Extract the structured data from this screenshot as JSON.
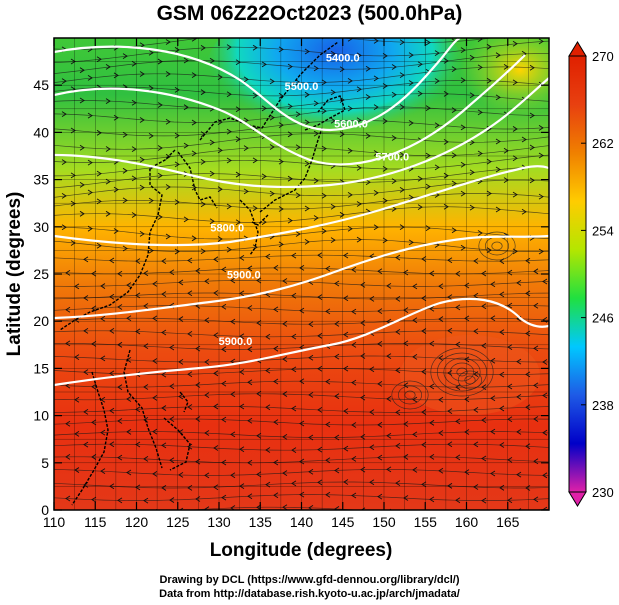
{
  "title": "GSM 06Z22Oct2023 (500.0hPa)",
  "chart_data": {
    "type": "heatmap",
    "title": "GSM 06Z22Oct2023 (500.0hPa)",
    "xlabel": "Longitude (degrees)",
    "ylabel": "Latitude  (degrees)",
    "xlim": [
      110,
      170
    ],
    "ylim": [
      0,
      50
    ],
    "x_ticks": [
      110,
      115,
      120,
      125,
      130,
      135,
      140,
      145,
      150,
      155,
      160,
      165
    ],
    "y_ticks": [
      0,
      5,
      10,
      15,
      20,
      25,
      30,
      35,
      40,
      45
    ],
    "grid": true,
    "colorbar": {
      "min": 230,
      "max": 270,
      "tick_values": [
        230,
        238,
        246,
        254,
        262,
        270
      ],
      "tick_labels": [
        "230",
        "238",
        "246",
        "254",
        "262",
        "270"
      ],
      "colors": [
        "#e020a8",
        "#0000c8",
        "#1e5ae6",
        "#00c8ff",
        "#20e040",
        "#b4e600",
        "#ffcc00",
        "#f08000",
        "#e84010",
        "#e02000"
      ]
    },
    "contour_labels": [
      {
        "text": "5400.0",
        "lon": 145,
        "lat": 47.5
      },
      {
        "text": "5500.0",
        "lon": 140,
        "lat": 44.5
      },
      {
        "text": "5600.0",
        "lon": 146,
        "lat": 40.5
      },
      {
        "text": "5700.0",
        "lon": 151,
        "lat": 37
      },
      {
        "text": "5800.0",
        "lon": 131,
        "lat": 29.5
      },
      {
        "text": "5900.0",
        "lon": 133,
        "lat": 24.5
      },
      {
        "text": "5900.0",
        "lon": 132,
        "lat": 17.5
      }
    ]
  },
  "credits": {
    "line1": "Drawing by DCL (https://www.gfd-dennou.org/library/dcl/)",
    "line2": "Data from http://database.rish.kyoto-u.ac.jp/arch/jmadata/"
  }
}
